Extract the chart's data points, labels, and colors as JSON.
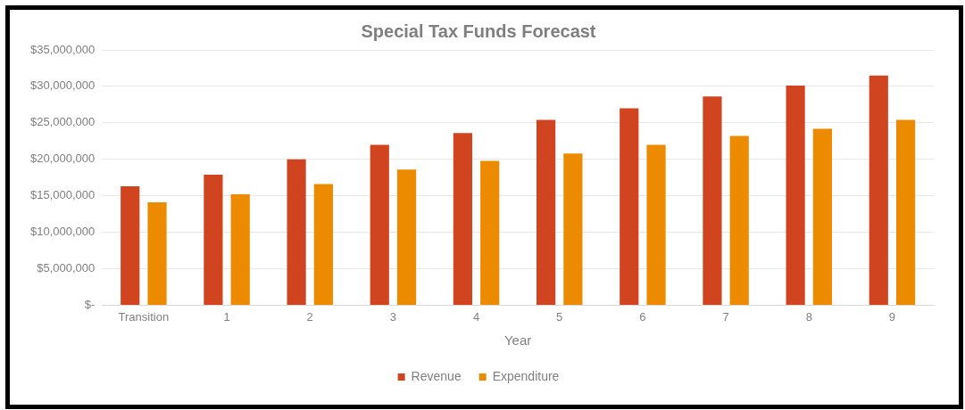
{
  "chart_data": {
    "type": "bar",
    "title": "Special Tax Funds Forecast",
    "xlabel": "Year",
    "categories": [
      "Transition",
      "1",
      "2",
      "3",
      "4",
      "5",
      "6",
      "7",
      "8",
      "9"
    ],
    "series": [
      {
        "name": "Revenue",
        "color": "#d0451f",
        "values": [
          16300000,
          17900000,
          20000000,
          22000000,
          23600000,
          25400000,
          27000000,
          28600000,
          30100000,
          31500000
        ]
      },
      {
        "name": "Expenditure",
        "color": "#ec8b00",
        "values": [
          14100000,
          15200000,
          16600000,
          18600000,
          19800000,
          20800000,
          22000000,
          23200000,
          24200000,
          25400000
        ]
      }
    ],
    "ylim": [
      0,
      35000000
    ],
    "yticks": [
      {
        "value": 0,
        "label": "$-"
      },
      {
        "value": 5000000,
        "label": "$5,000,000"
      },
      {
        "value": 10000000,
        "label": "$10,000,000"
      },
      {
        "value": 15000000,
        "label": "$15,000,000"
      },
      {
        "value": 20000000,
        "label": "$20,000,000"
      },
      {
        "value": 25000000,
        "label": "$25,000,000"
      },
      {
        "value": 30000000,
        "label": "$30,000,000"
      },
      {
        "value": 35000000,
        "label": "$35,000,000"
      }
    ],
    "grid": "y",
    "legend": "bottom"
  }
}
